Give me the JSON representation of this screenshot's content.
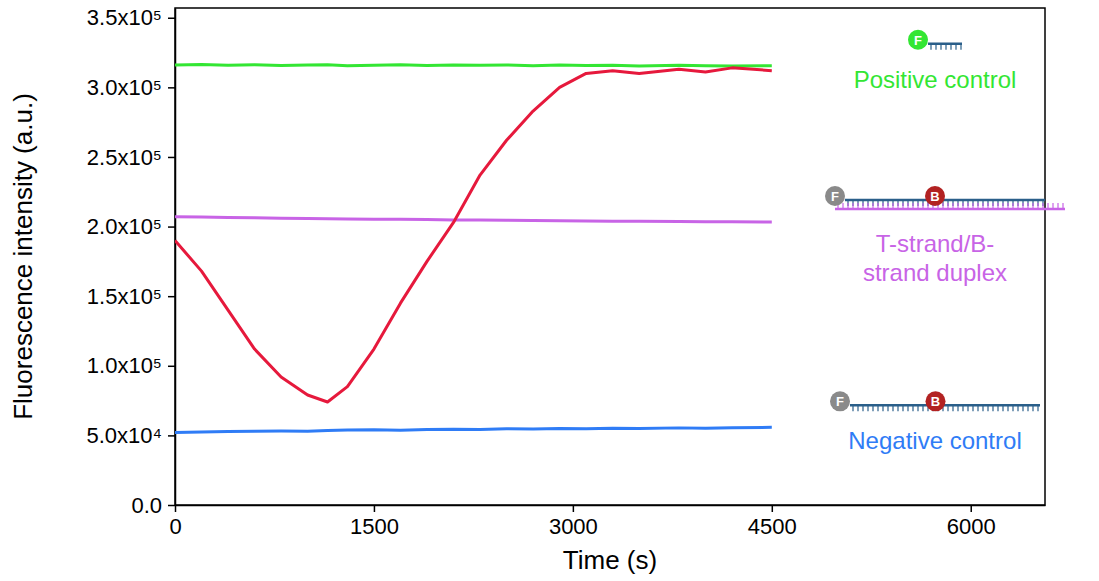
{
  "chart_data": {
    "type": "line",
    "x_label": "Time (s)",
    "y_label": "Fluorescence intensity (a.u.)",
    "x": [
      0,
      200,
      400,
      600,
      800,
      1000,
      1150,
      1300,
      1500,
      1700,
      1900,
      2100,
      2300,
      2500,
      2700,
      2900,
      3100,
      3300,
      3500,
      3800,
      4000,
      4200,
      4500
    ],
    "series": [
      {
        "name": "Positive control",
        "color": "#33e633",
        "values": [
          316000,
          316500,
          315800,
          316200,
          315700,
          316000,
          316300,
          315600,
          315900,
          316200,
          315700,
          316000,
          315800,
          316100,
          315500,
          316000,
          315700,
          315900,
          315400,
          315800,
          315600,
          315300,
          315500
        ]
      },
      {
        "name": "T-strand/B-strand duplex",
        "color": "#c864e6",
        "values": [
          207000,
          206800,
          206500,
          206300,
          206000,
          205800,
          205700,
          205500,
          205300,
          205200,
          205000,
          204800,
          204700,
          204500,
          204300,
          204200,
          204000,
          203900,
          203800,
          203600,
          203500,
          203400,
          203300
        ]
      },
      {
        "color": "#e6193c",
        "values": [
          190000,
          168000,
          140000,
          112000,
          92000,
          79000,
          74000,
          85000,
          112000,
          145000,
          175000,
          203000,
          237000,
          262000,
          283000,
          300000,
          310000,
          312000,
          310000,
          313000,
          311000,
          314000,
          312000
        ]
      },
      {
        "name": "Negative control",
        "color": "#2f7cf6",
        "values": [
          52000,
          52500,
          52800,
          53000,
          53200,
          53000,
          53500,
          53800,
          54000,
          53700,
          54200,
          54500,
          54300,
          54800,
          54600,
          55000,
          54800,
          55200,
          55000,
          55400,
          55200,
          55500,
          55800
        ]
      }
    ],
    "annotations": [
      "F",
      "B"
    ],
    "xlim": [
      0,
      6560
    ],
    "xticks": [
      0,
      1500,
      3000,
      4500,
      6000
    ],
    "ylim": [
      0,
      357000
    ],
    "yticks": [
      {
        "value": 0,
        "label": "0.0"
      },
      {
        "value": 50000,
        "label": "5.0x10⁴"
      },
      {
        "value": 100000,
        "label": "1.0x10⁵"
      },
      {
        "value": 150000,
        "label": "1.5x10⁵"
      },
      {
        "value": 200000,
        "label": "2.0x10⁵"
      },
      {
        "value": 250000,
        "label": "2.5x10⁵"
      },
      {
        "value": 300000,
        "label": "3.0x10⁵"
      },
      {
        "value": 350000,
        "label": "3.5x10⁵"
      }
    ],
    "grid": false
  }
}
